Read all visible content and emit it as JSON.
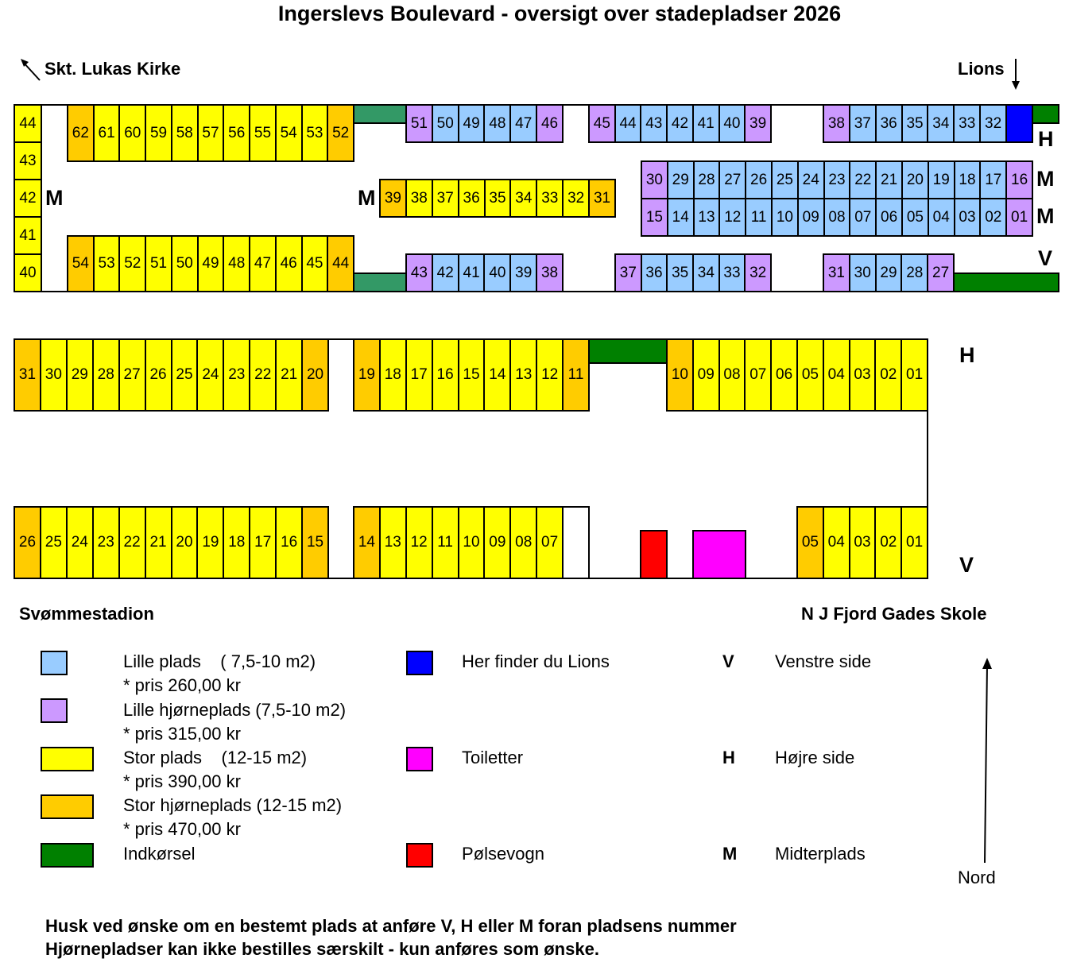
{
  "title": "Ingerslevs Boulevard - oversigt over stadepladser 2026",
  "landmarks": {
    "top_left": "Skt. Lukas Kirke",
    "top_right": "Lions",
    "bottom_left": "Svømmestadion",
    "bottom_right": "N J Fjord Gades Skole",
    "north": "Nord"
  },
  "colors": {
    "lille": "#99ccff",
    "lille_hjorne": "#cc99ff",
    "stor": "#ffff00",
    "stor_hjorne": "#ffcc00",
    "indkorsel": "#008000",
    "indkorsel_alt": "#339966",
    "lions": "#0000ff",
    "toiletter": "#ff00ff",
    "polsevogn": "#ff0000"
  },
  "side_labels": {
    "upper_left_m": "M",
    "upper_mid_m": "M",
    "upper_h": "H",
    "upper_m1": "M",
    "upper_m2": "M",
    "upper_v": "V",
    "lower_h": "H",
    "lower_v": "V"
  },
  "groups": [
    {
      "labels": [
        "44",
        "43",
        "42",
        "41",
        "40"
      ],
      "types": [
        "s",
        "s",
        "s",
        "s",
        "s"
      ]
    },
    {
      "labels": [
        "62",
        "61",
        "60",
        "59",
        "58",
        "57",
        "56",
        "55",
        "54",
        "53",
        "52"
      ],
      "types": [
        "sh",
        "s",
        "s",
        "s",
        "s",
        "s",
        "s",
        "s",
        "s",
        "s",
        "sh"
      ]
    },
    {
      "labels": [
        "51",
        "50",
        "49",
        "48",
        "47",
        "46"
      ],
      "types": [
        "lh",
        "l",
        "l",
        "l",
        "l",
        "lh"
      ]
    },
    {
      "labels": [
        "45",
        "44",
        "43",
        "42",
        "41",
        "40",
        "39"
      ],
      "types": [
        "lh",
        "l",
        "l",
        "l",
        "l",
        "l",
        "lh"
      ]
    },
    {
      "labels": [
        "38",
        "37",
        "36",
        "35",
        "34",
        "33",
        "32"
      ],
      "types": [
        "lh",
        "l",
        "l",
        "l",
        "l",
        "l",
        "l"
      ]
    },
    {
      "labels": [
        "39",
        "38",
        "37",
        "36",
        "35",
        "34",
        "33",
        "32",
        "31"
      ],
      "types": [
        "sh",
        "s",
        "s",
        "s",
        "s",
        "s",
        "s",
        "s",
        "sh"
      ]
    },
    {
      "labels": [
        "30",
        "29",
        "28",
        "27",
        "26",
        "25",
        "24",
        "23",
        "22",
        "21",
        "20",
        "19",
        "18",
        "17",
        "16"
      ],
      "types": [
        "lh",
        "l",
        "l",
        "l",
        "l",
        "l",
        "l",
        "l",
        "l",
        "l",
        "l",
        "l",
        "l",
        "l",
        "lh"
      ]
    },
    {
      "labels": [
        "15",
        "14",
        "13",
        "12",
        "11",
        "10",
        "09",
        "08",
        "07",
        "06",
        "05",
        "04",
        "03",
        "02",
        "01"
      ],
      "types": [
        "lh",
        "l",
        "l",
        "l",
        "l",
        "l",
        "l",
        "l",
        "l",
        "l",
        "l",
        "l",
        "l",
        "l",
        "lh"
      ]
    },
    {
      "labels": [
        "54",
        "53",
        "52",
        "51",
        "50",
        "49",
        "48",
        "47",
        "46",
        "45",
        "44"
      ],
      "types": [
        "sh",
        "s",
        "s",
        "s",
        "s",
        "s",
        "s",
        "s",
        "s",
        "s",
        "sh"
      ]
    },
    {
      "labels": [
        "43",
        "42",
        "41",
        "40",
        "39",
        "38"
      ],
      "types": [
        "lh",
        "l",
        "l",
        "l",
        "l",
        "lh"
      ]
    },
    {
      "labels": [
        "37",
        "36",
        "35",
        "34",
        "33",
        "32"
      ],
      "types": [
        "lh",
        "l",
        "l",
        "l",
        "l",
        "lh"
      ]
    },
    {
      "labels": [
        "31",
        "30",
        "29",
        "28",
        "27"
      ],
      "types": [
        "lh",
        "l",
        "l",
        "l",
        "lh"
      ]
    },
    {
      "labels": [
        "31",
        "30",
        "29",
        "28",
        "27",
        "26",
        "25",
        "24",
        "23",
        "22",
        "21",
        "20"
      ],
      "types": [
        "sh",
        "s",
        "s",
        "s",
        "s",
        "s",
        "s",
        "s",
        "s",
        "s",
        "s",
        "sh"
      ]
    },
    {
      "labels": [
        "19",
        "18",
        "17",
        "16",
        "15",
        "14",
        "13",
        "12",
        "11"
      ],
      "types": [
        "sh",
        "s",
        "s",
        "s",
        "s",
        "s",
        "s",
        "s",
        "sh"
      ]
    },
    {
      "labels": [
        "10",
        "09",
        "08",
        "07",
        "06",
        "05",
        "04",
        "03",
        "02",
        "01"
      ],
      "types": [
        "sh",
        "s",
        "s",
        "s",
        "s",
        "s",
        "s",
        "s",
        "s",
        "s"
      ]
    },
    {
      "labels": [
        "26",
        "25",
        "24",
        "23",
        "22",
        "21",
        "20",
        "19",
        "18",
        "17",
        "16",
        "15"
      ],
      "types": [
        "sh",
        "s",
        "s",
        "s",
        "s",
        "s",
        "s",
        "s",
        "s",
        "s",
        "s",
        "sh"
      ]
    },
    {
      "labels": [
        "14",
        "13",
        "12",
        "11",
        "10",
        "09",
        "08",
        "07"
      ],
      "types": [
        "sh",
        "s",
        "s",
        "s",
        "s",
        "s",
        "s",
        "s"
      ]
    },
    {
      "labels": [
        "05",
        "04",
        "03",
        "02",
        "01"
      ],
      "types": [
        "sh",
        "s",
        "s",
        "s",
        "s"
      ]
    }
  ],
  "legend": {
    "left": [
      {
        "label": "Lille plads    ( 7,5-10 m2)",
        "price": "* pris 260,00 kr"
      },
      {
        "label": "Lille hjørneplads (7,5-10 m2)",
        "price": "* pris 315,00 kr"
      },
      {
        "label": "Stor plads    (12-15 m2)",
        "price": "* pris 390,00 kr"
      },
      {
        "label": "Stor hjørneplads (12-15 m2)",
        "price": "* pris 470,00 kr"
      },
      {
        "label": "Indkørsel"
      }
    ],
    "middle": [
      {
        "label": "Her finder du Lions"
      },
      {
        "label": "Toiletter"
      },
      {
        "label": "Pølsevogn"
      }
    ],
    "right": [
      {
        "letter": "V",
        "label": "Venstre side"
      },
      {
        "letter": "H",
        "label": "Højre side"
      },
      {
        "letter": "M",
        "label": "Midterplads"
      }
    ]
  },
  "notes": [
    "Husk ved ønske om en bestemt plads at anføre V, H eller M foran pladsens nummer",
    "Hjørnepladser kan ikke bestilles særskilt - kun anføres som ønske."
  ]
}
